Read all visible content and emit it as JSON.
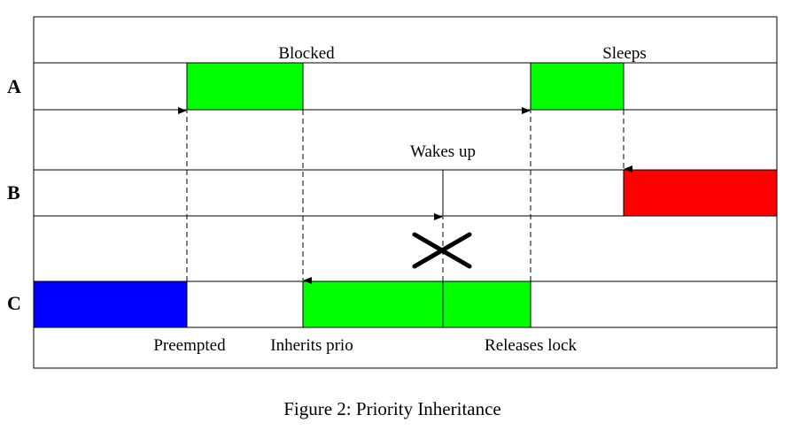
{
  "rows": [
    {
      "id": "A",
      "label": "A"
    },
    {
      "id": "B",
      "label": "B"
    },
    {
      "id": "C",
      "label": "C"
    }
  ],
  "annotations": {
    "blocked": "Blocked",
    "sleeps": "Sleeps",
    "wakes_up": "Wakes up",
    "preempted": "Preempted",
    "inherits_prio": "Inherits prio",
    "releases_lock": "Releases lock"
  },
  "caption": "Figure 2: Priority Inheritance",
  "colors": {
    "running": "#00ff00",
    "task_c_normal": "#0000ff",
    "task_b": "#ff0000",
    "line": "#000000"
  }
}
